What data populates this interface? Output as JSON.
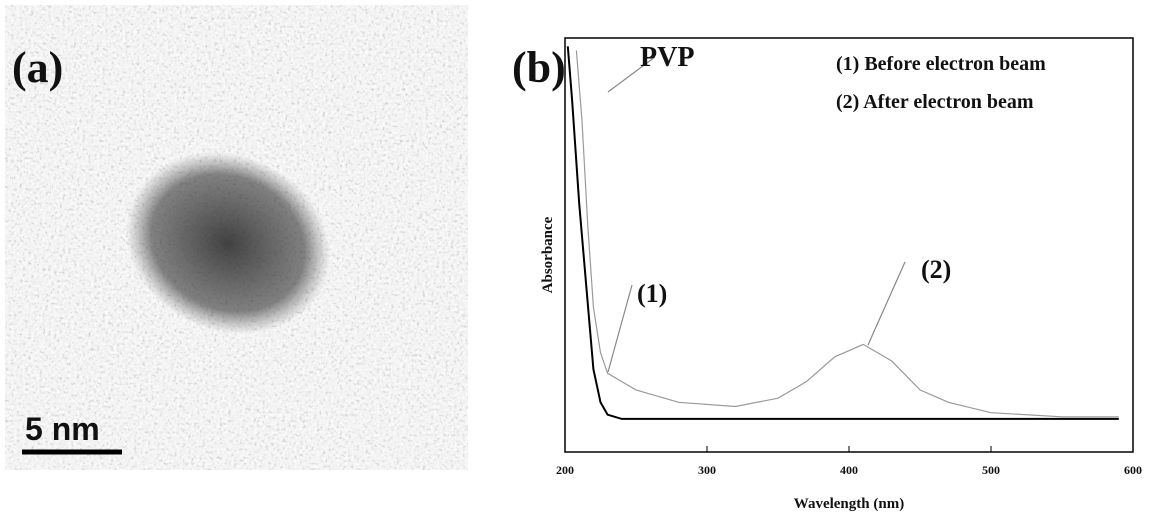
{
  "panels": {
    "a": "(a)",
    "b": "(b)"
  },
  "scale_bar": "5 nm",
  "chart_data": {
    "type": "line",
    "xlabel": "Wavelength (nm)",
    "ylabel": "Absorbance",
    "xlim": [
      200,
      600
    ],
    "xticks": [
      200,
      300,
      400,
      500,
      600
    ],
    "ylim": [
      0,
      1
    ],
    "annotations": [
      "PVP",
      "(1)",
      "(2)"
    ],
    "series": [
      {
        "name": "(1) Before electron beam",
        "color": "#000000",
        "x": [
          202,
          205,
          210,
          215,
          220,
          225,
          230,
          240,
          300,
          400,
          500,
          590
        ],
        "values": [
          0.98,
          0.85,
          0.6,
          0.4,
          0.2,
          0.12,
          0.09,
          0.08,
          0.08,
          0.08,
          0.08,
          0.08
        ]
      },
      {
        "name": "(2) After electron beam",
        "color": "#9a9a9a",
        "x": [
          208,
          212,
          216,
          220,
          225,
          230,
          250,
          280,
          320,
          350,
          370,
          390,
          410,
          430,
          450,
          470,
          500,
          550,
          590
        ],
        "values": [
          0.97,
          0.8,
          0.55,
          0.35,
          0.24,
          0.19,
          0.15,
          0.12,
          0.11,
          0.13,
          0.17,
          0.23,
          0.26,
          0.22,
          0.15,
          0.12,
          0.095,
          0.085,
          0.085
        ]
      }
    ]
  }
}
